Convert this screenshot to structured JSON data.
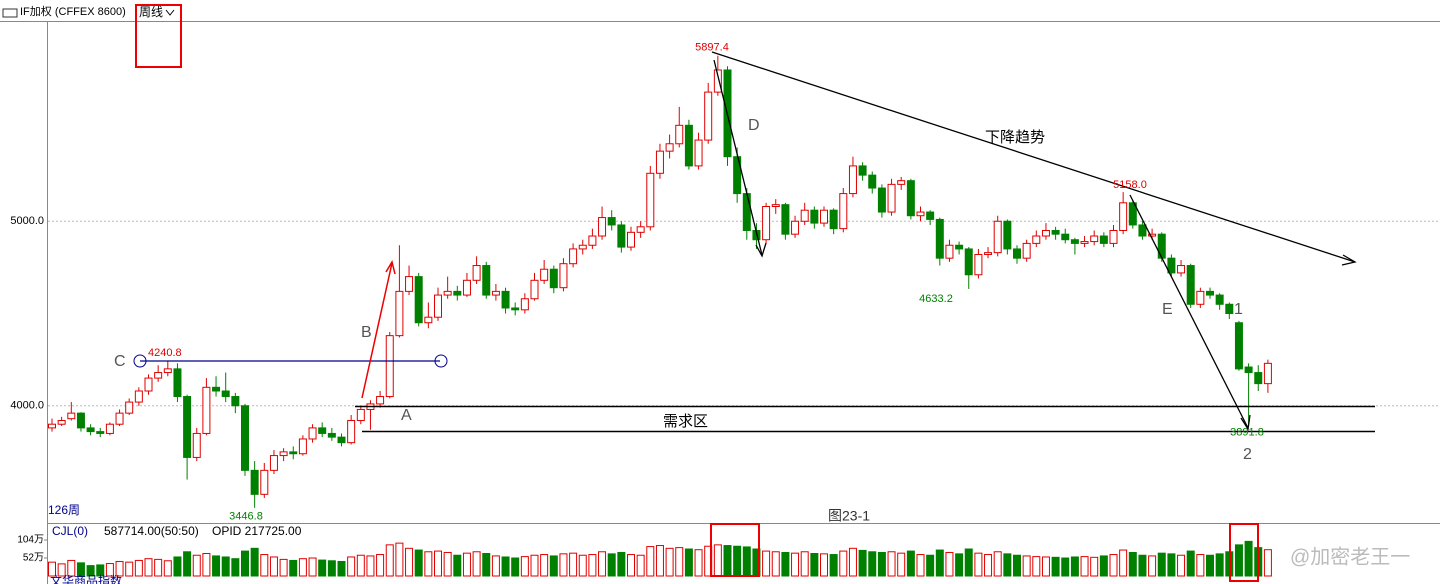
{
  "header": {
    "symbol": "IF加权 (CFFEX 8600)",
    "period": "周线"
  },
  "chart_data": [
    {
      "type": "candlestick",
      "ylim": [
        3370,
        6080
      ],
      "yticks": [
        {
          "value": 4000,
          "label": "4000.0"
        },
        {
          "value": 5000,
          "label": "5000.0"
        }
      ],
      "grid": true,
      "up_color": "#e00000",
      "down_color": "#008000",
      "caption": "图23-1",
      "count_label": "126周",
      "candles": [
        [
          3880,
          3930,
          3860,
          3900
        ],
        [
          3900,
          3940,
          3890,
          3920
        ],
        [
          3930,
          4020,
          3920,
          3960
        ],
        [
          3960,
          3965,
          3860,
          3880
        ],
        [
          3880,
          3900,
          3840,
          3860
        ],
        [
          3860,
          3880,
          3830,
          3850
        ],
        [
          3850,
          3910,
          3840,
          3900
        ],
        [
          3900,
          3980,
          3890,
          3960
        ],
        [
          3960,
          4040,
          3950,
          4020
        ],
        [
          4020,
          4100,
          4000,
          4080
        ],
        [
          4080,
          4170,
          4060,
          4150
        ],
        [
          4150,
          4220,
          4130,
          4180
        ],
        [
          4180,
          4240.8,
          4160,
          4200
        ],
        [
          4200,
          4230,
          4020,
          4050
        ],
        [
          4050,
          4060,
          3600,
          3720
        ],
        [
          3720,
          3880,
          3700,
          3850
        ],
        [
          3850,
          4150,
          3840,
          4100
        ],
        [
          4100,
          4160,
          4050,
          4080
        ],
        [
          4080,
          4180,
          4020,
          4050
        ],
        [
          4050,
          4070,
          3960,
          4000
        ],
        [
          4000,
          4010,
          3620,
          3650
        ],
        [
          3650,
          3700,
          3446.8,
          3520
        ],
        [
          3520,
          3690,
          3500,
          3650
        ],
        [
          3650,
          3760,
          3630,
          3730
        ],
        [
          3730,
          3770,
          3700,
          3750
        ],
        [
          3750,
          3780,
          3710,
          3740
        ],
        [
          3740,
          3840,
          3730,
          3820
        ],
        [
          3820,
          3900,
          3800,
          3880
        ],
        [
          3880,
          3910,
          3830,
          3850
        ],
        [
          3850,
          3880,
          3810,
          3830
        ],
        [
          3830,
          3850,
          3780,
          3800
        ],
        [
          3800,
          3950,
          3790,
          3920
        ],
        [
          3920,
          4000,
          3900,
          3980
        ],
        [
          3980,
          4030,
          3870,
          4010
        ],
        [
          4010,
          4080,
          3990,
          4050
        ],
        [
          4050,
          4400,
          4040,
          4380
        ],
        [
          4380,
          4870,
          4370,
          4620
        ],
        [
          4620,
          4760,
          4600,
          4700
        ],
        [
          4700,
          4720,
          4430,
          4450
        ],
        [
          4450,
          4560,
          4420,
          4480
        ],
        [
          4480,
          4640,
          4460,
          4600
        ],
        [
          4600,
          4700,
          4580,
          4620
        ],
        [
          4620,
          4650,
          4570,
          4600
        ],
        [
          4600,
          4720,
          4590,
          4680
        ],
        [
          4680,
          4810,
          4660,
          4760
        ],
        [
          4760,
          4780,
          4580,
          4600
        ],
        [
          4600,
          4660,
          4570,
          4620
        ],
        [
          4620,
          4640,
          4500,
          4530
        ],
        [
          4530,
          4560,
          4490,
          4520
        ],
        [
          4520,
          4610,
          4500,
          4580
        ],
        [
          4580,
          4720,
          4570,
          4680
        ],
        [
          4680,
          4790,
          4660,
          4740
        ],
        [
          4740,
          4760,
          4610,
          4640
        ],
        [
          4640,
          4800,
          4620,
          4770
        ],
        [
          4770,
          4880,
          4750,
          4850
        ],
        [
          4850,
          4900,
          4820,
          4870
        ],
        [
          4870,
          4960,
          4850,
          4920
        ],
        [
          4920,
          5080,
          4900,
          5020
        ],
        [
          5020,
          5060,
          4950,
          4980
        ],
        [
          4980,
          5000,
          4830,
          4860
        ],
        [
          4860,
          4970,
          4840,
          4940
        ],
        [
          4940,
          5000,
          4910,
          4970
        ],
        [
          4970,
          5300,
          4950,
          5260
        ],
        [
          5260,
          5420,
          5230,
          5380
        ],
        [
          5380,
          5470,
          5340,
          5420
        ],
        [
          5420,
          5620,
          5400,
          5520
        ],
        [
          5520,
          5550,
          5280,
          5300
        ],
        [
          5300,
          5480,
          5280,
          5440
        ],
        [
          5440,
          5750,
          5420,
          5700
        ],
        [
          5700,
          5897.4,
          5680,
          5820
        ],
        [
          5820,
          5840,
          5300,
          5350
        ],
        [
          5350,
          5400,
          5100,
          5150
        ],
        [
          5150,
          5180,
          4900,
          4950
        ],
        [
          4950,
          4990,
          4850,
          4900
        ],
        [
          4900,
          5100,
          4880,
          5080
        ],
        [
          5080,
          5120,
          5040,
          5090
        ],
        [
          5090,
          5100,
          4900,
          4930
        ],
        [
          4930,
          5030,
          4910,
          5000
        ],
        [
          5000,
          5100,
          4980,
          5060
        ],
        [
          5060,
          5080,
          4960,
          4990
        ],
        [
          4990,
          5080,
          4970,
          5060
        ],
        [
          5060,
          5070,
          4930,
          4960
        ],
        [
          4960,
          5180,
          4940,
          5150
        ],
        [
          5150,
          5350,
          5130,
          5300
        ],
        [
          5300,
          5320,
          5220,
          5250
        ],
        [
          5250,
          5270,
          5150,
          5180
        ],
        [
          5180,
          5200,
          5020,
          5050
        ],
        [
          5050,
          5230,
          5030,
          5200
        ],
        [
          5200,
          5240,
          5170,
          5220
        ],
        [
          5220,
          5230,
          5010,
          5030
        ],
        [
          5030,
          5080,
          5000,
          5050
        ],
        [
          5050,
          5060,
          4980,
          5010
        ],
        [
          5010,
          5020,
          4760,
          4800
        ],
        [
          4800,
          4900,
          4780,
          4870
        ],
        [
          4870,
          4890,
          4820,
          4850
        ],
        [
          4850,
          4860,
          4633.2,
          4710
        ],
        [
          4710,
          4850,
          4690,
          4820
        ],
        [
          4820,
          4860,
          4800,
          4830
        ],
        [
          4830,
          5030,
          4810,
          5000
        ],
        [
          5000,
          5010,
          4820,
          4850
        ],
        [
          4850,
          4870,
          4770,
          4800
        ],
        [
          4800,
          4900,
          4780,
          4880
        ],
        [
          4880,
          4950,
          4860,
          4920
        ],
        [
          4920,
          4990,
          4900,
          4950
        ],
        [
          4950,
          4970,
          4900,
          4930
        ],
        [
          4930,
          4960,
          4880,
          4900
        ],
        [
          4900,
          4910,
          4820,
          4880
        ],
        [
          4880,
          4920,
          4860,
          4890
        ],
        [
          4890,
          4950,
          4870,
          4920
        ],
        [
          4920,
          4940,
          4860,
          4880
        ],
        [
          4880,
          4980,
          4860,
          4950
        ],
        [
          4950,
          5158,
          4930,
          5100
        ],
        [
          5100,
          5110,
          4960,
          4980
        ],
        [
          4980,
          5000,
          4900,
          4920
        ],
        [
          4920,
          4960,
          4900,
          4930
        ],
        [
          4930,
          4940,
          4780,
          4800
        ],
        [
          4800,
          4820,
          4700,
          4720
        ],
        [
          4720,
          4790,
          4700,
          4760
        ],
        [
          4760,
          4770,
          4530,
          4550
        ],
        [
          4550,
          4640,
          4530,
          4620
        ],
        [
          4620,
          4640,
          4580,
          4600
        ],
        [
          4600,
          4610,
          4520,
          4550
        ],
        [
          4550,
          4560,
          4470,
          4500
        ],
        [
          4450,
          4460,
          4190,
          4200
        ],
        [
          4210,
          4230,
          3891.8,
          4180
        ],
        [
          4180,
          4220,
          4080,
          4120
        ],
        [
          4120,
          4250,
          4070,
          4230
        ]
      ],
      "price_labels": [
        {
          "value": 5897.4,
          "label": "5897.4"
        },
        {
          "value": 4240.8,
          "label": "4240.8"
        },
        {
          "value": 3446.8,
          "label": "3446.8"
        },
        {
          "value": 4633.2,
          "label": "4633.2"
        },
        {
          "value": 5158.0,
          "label": "5158.0"
        },
        {
          "value": 3891.8,
          "label": "3891.8"
        }
      ],
      "annotations": [
        "C",
        "B",
        "A",
        "D",
        "E",
        "1",
        "2",
        "下降趋势",
        "需求区"
      ]
    },
    {
      "type": "bar",
      "title": "CJL(0)",
      "readouts": [
        "587714.00(50:50)",
        "OPID 217725.00"
      ],
      "ylim": [
        0,
        144.5
      ],
      "yticks": [
        {
          "value": 52,
          "label": "52万"
        },
        {
          "value": 104,
          "label": "104万"
        }
      ],
      "values": [
        40,
        35,
        45,
        38,
        30,
        32,
        36,
        42,
        40,
        45,
        50,
        48,
        44,
        55,
        70,
        60,
        65,
        58,
        55,
        50,
        72,
        80,
        62,
        55,
        48,
        45,
        50,
        52,
        46,
        44,
        42,
        55,
        60,
        58,
        62,
        90,
        95,
        80,
        75,
        70,
        72,
        68,
        60,
        66,
        70,
        65,
        58,
        55,
        52,
        56,
        60,
        62,
        58,
        64,
        66,
        60,
        62,
        70,
        64,
        68,
        62,
        60,
        85,
        88,
        80,
        82,
        78,
        76,
        86,
        90,
        88,
        86,
        84,
        78,
        72,
        70,
        68,
        66,
        70,
        65,
        64,
        62,
        72,
        80,
        74,
        70,
        68,
        70,
        66,
        72,
        62,
        60,
        75,
        68,
        64,
        78,
        66,
        62,
        70,
        64,
        60,
        58,
        56,
        55,
        54,
        52,
        55,
        56,
        54,
        58,
        62,
        75,
        68,
        60,
        58,
        66,
        64,
        60,
        72,
        62,
        60,
        64,
        70,
        90,
        100,
        82,
        76
      ]
    }
  ],
  "footer": {
    "index_name": "文华商品指数",
    "watermark": "@加密老王一"
  }
}
